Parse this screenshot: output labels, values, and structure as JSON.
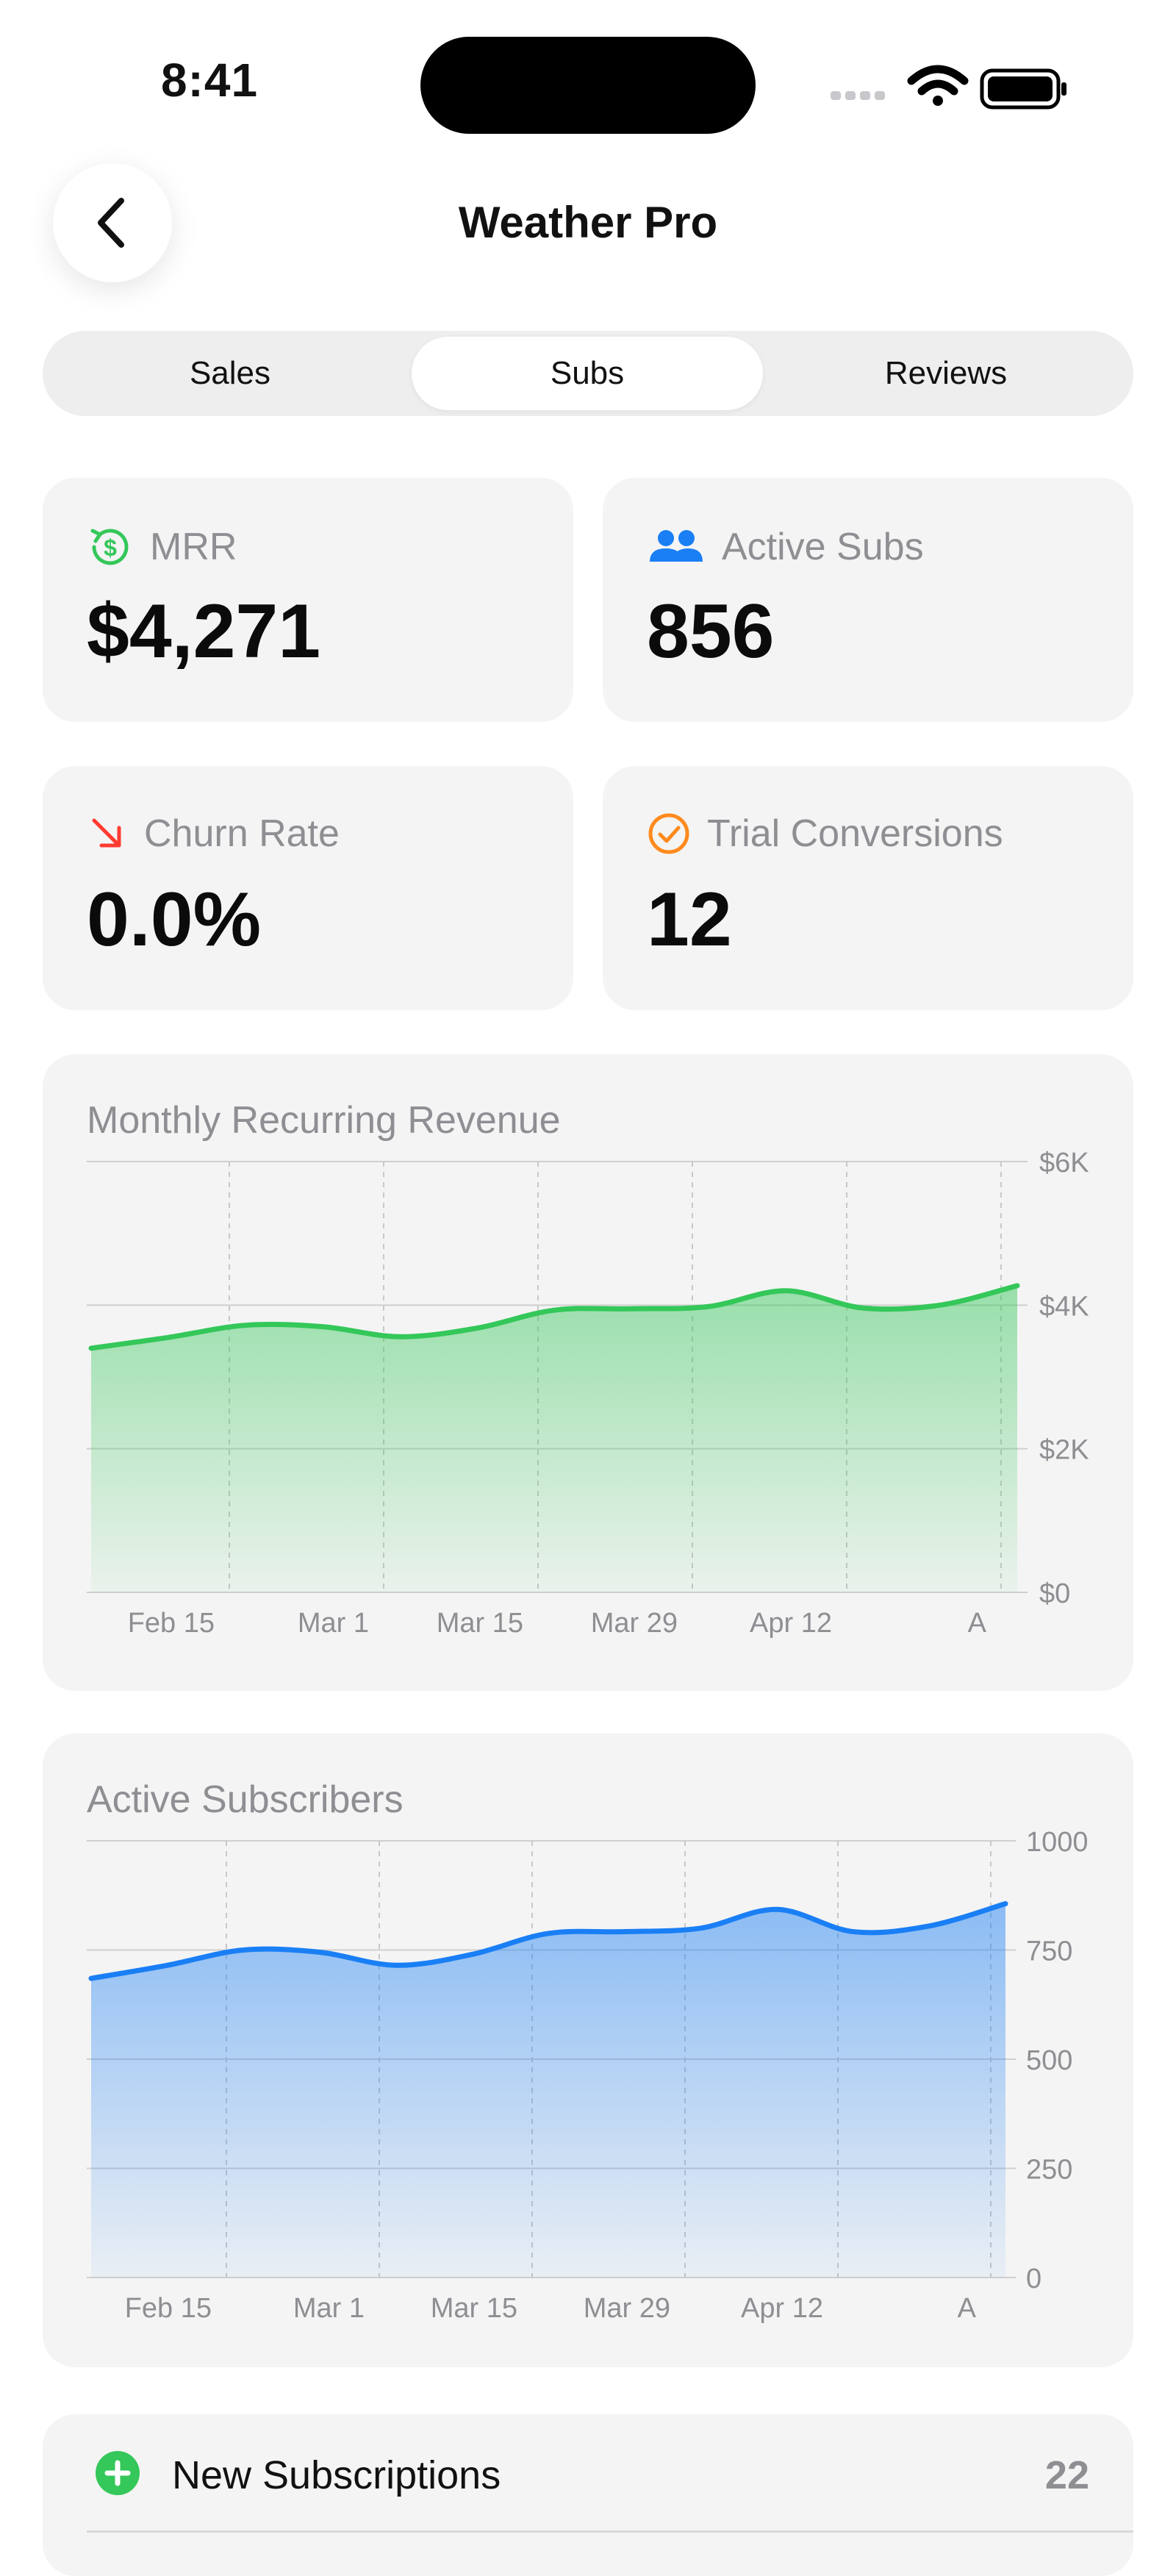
{
  "status_bar": {
    "time": "8:41"
  },
  "nav": {
    "title": "Weather Pro"
  },
  "tabs": [
    {
      "label": "Sales",
      "active": false
    },
    {
      "label": "Subs",
      "active": true
    },
    {
      "label": "Reviews",
      "active": false
    }
  ],
  "stats": [
    {
      "label": "MRR",
      "value": "$4,271",
      "icon": "dollar-refresh-icon",
      "icon_color": "#34c759"
    },
    {
      "label": "Active Subs",
      "value": "856",
      "icon": "people-icon",
      "icon_color": "#1a7ff5"
    },
    {
      "label": "Churn Rate",
      "value": "0.0%",
      "icon": "arrow-down-right-icon",
      "icon_color": "#ff3b30"
    },
    {
      "label": "Trial Conversions",
      "value": "12",
      "icon": "checkmark-circle-icon",
      "icon_color": "#ff8a1e"
    }
  ],
  "chart_data": [
    {
      "type": "area",
      "title": "Monthly Recurring Revenue",
      "color": "#34c759",
      "x_labels": [
        "Feb 15",
        "Mar 1",
        "Mar 15",
        "Mar 29",
        "Apr 12",
        "A"
      ],
      "y_ticks": [
        "$6K",
        "$4K",
        "$2K",
        "$0"
      ],
      "ylim": [
        0,
        6000
      ],
      "values": [
        3400,
        3550,
        3720,
        3700,
        3560,
        3680,
        3930,
        3950,
        3980,
        4200,
        3960,
        4000,
        4271
      ]
    },
    {
      "type": "area",
      "title": "Active Subscribers",
      "color": "#1a7ff5",
      "x_labels": [
        "Feb 15",
        "Mar 1",
        "Mar 15",
        "Mar 29",
        "Apr 12",
        "A"
      ],
      "y_ticks": [
        "1000",
        "750",
        "500",
        "250",
        "0"
      ],
      "ylim": [
        0,
        1000
      ],
      "values": [
        685,
        715,
        750,
        745,
        715,
        740,
        788,
        792,
        800,
        843,
        792,
        805,
        856
      ]
    }
  ],
  "list": {
    "rows": [
      {
        "label": "New Subscriptions",
        "value": "22",
        "icon": "plus-circle-icon",
        "icon_color": "#34c759"
      }
    ]
  }
}
